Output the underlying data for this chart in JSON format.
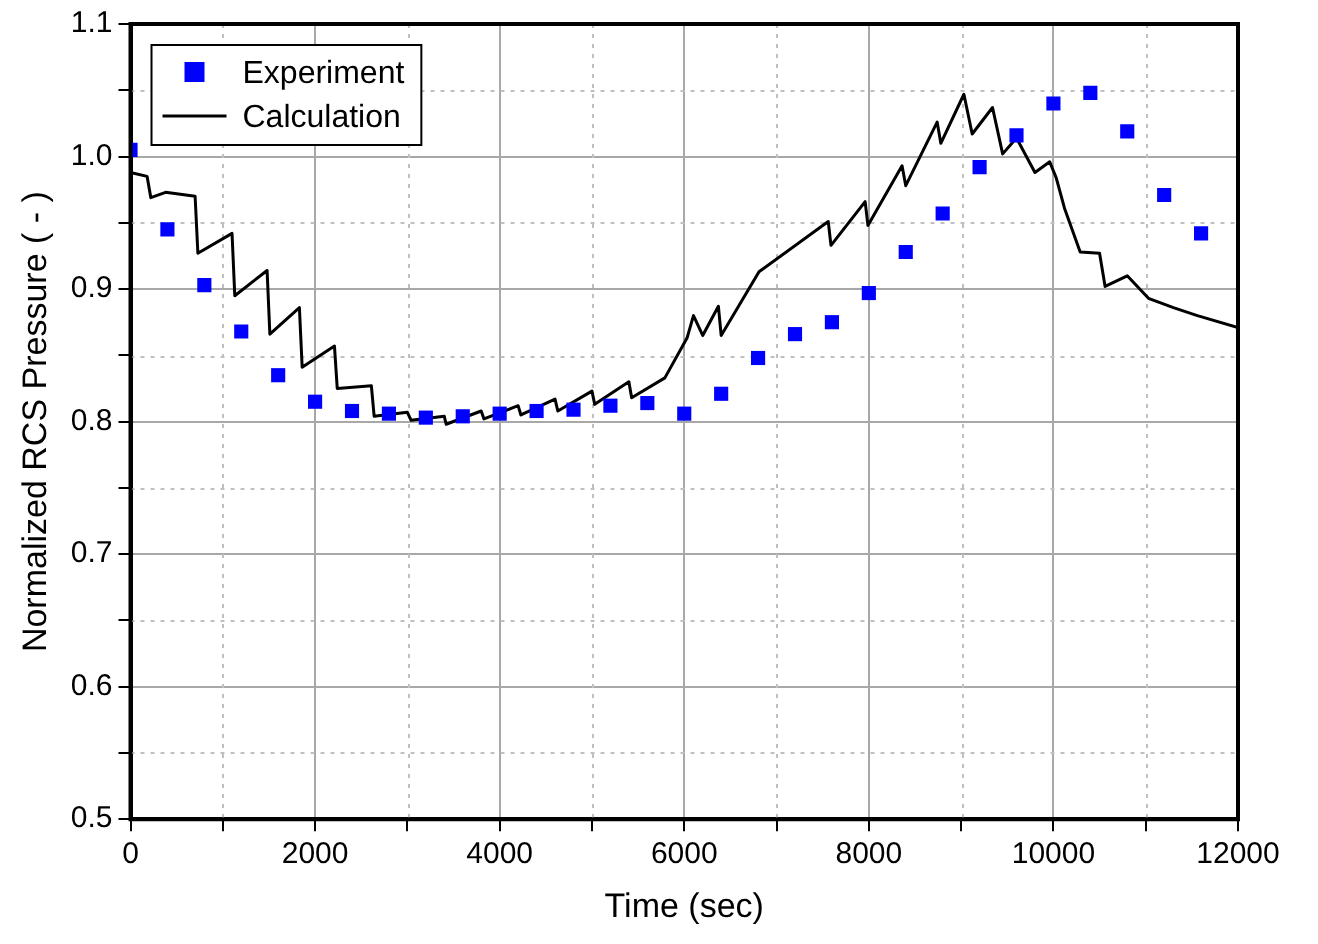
{
  "chart_data": {
    "type": "line",
    "xlabel": "Time (sec)",
    "ylabel": "Normalized RCS Pressure ( - )",
    "xlim": [
      0,
      12000
    ],
    "ylim": [
      0.5,
      1.1
    ],
    "xticks": [
      0,
      {
        "value": 1000,
        "label": null
      },
      2000,
      {
        "value": 3000,
        "label": null
      },
      4000,
      {
        "value": 5000,
        "label": null
      },
      6000,
      {
        "value": 7000,
        "label": null
      },
      8000,
      {
        "value": 9000,
        "label": null
      },
      10000,
      {
        "value": 11000,
        "label": null
      },
      12000
    ],
    "yticks": [
      0.5,
      {
        "value": 0.55,
        "label": null
      },
      0.6,
      {
        "value": 0.65,
        "label": null
      },
      0.7,
      {
        "value": 0.75,
        "label": null
      },
      0.8,
      {
        "value": 0.85,
        "label": null
      },
      0.9,
      {
        "value": 0.95,
        "label": null
      },
      {
        "value": 1,
        "label": "1.0"
      },
      {
        "value": 1.05,
        "label": null
      },
      1.1
    ],
    "grid": true,
    "legend": "top left",
    "series": [
      {
        "name": "Experiment",
        "type": "scatter",
        "marker": "square",
        "color": "#0000ff",
        "x": [
          0,
          400,
          800,
          1200,
          1600,
          2000,
          2400,
          2800,
          3200,
          3600,
          4000,
          4400,
          4800,
          5200,
          5600,
          6000,
          6400,
          6800,
          7200,
          7600,
          8000,
          8400,
          8800,
          9200,
          9600,
          10000,
          10400,
          10800,
          11200,
          11600
        ],
        "values": [
          1.005,
          0.945,
          0.903,
          0.868,
          0.835,
          0.815,
          0.808,
          0.806,
          0.803,
          0.804,
          0.806,
          0.808,
          0.809,
          0.812,
          0.814,
          0.806,
          0.821,
          0.848,
          0.866,
          0.875,
          0.897,
          0.928,
          0.957,
          0.992,
          1.016,
          1.04,
          1.048,
          1.019,
          0.971,
          0.942
        ]
      },
      {
        "name": "Calculation",
        "marker": "none",
        "line_style": "solid",
        "color": "#000000",
        "x": [
          0,
          180,
          220,
          380,
          700,
          730,
          1100,
          1130,
          1480,
          1510,
          1830,
          1860,
          2210,
          2240,
          2610,
          2640,
          3000,
          3040,
          3400,
          3420,
          3800,
          3830,
          4200,
          4230,
          4600,
          4630,
          5000,
          5030,
          5400,
          5430,
          5790,
          6030,
          6100,
          6200,
          6370,
          6400,
          6810,
          7560,
          7590,
          7960,
          7990,
          8360,
          8400,
          8740,
          8780,
          9030,
          9120,
          9340,
          9450,
          9600,
          9800,
          9960,
          10030,
          10120,
          10290,
          10500,
          10560,
          10800,
          11030,
          11300,
          11560,
          12000
        ],
        "values": [
          0.988,
          0.985,
          0.969,
          0.973,
          0.97,
          0.927,
          0.942,
          0.895,
          0.914,
          0.866,
          0.886,
          0.841,
          0.857,
          0.825,
          0.827,
          0.804,
          0.807,
          0.801,
          0.804,
          0.798,
          0.808,
          0.802,
          0.812,
          0.805,
          0.817,
          0.808,
          0.823,
          0.813,
          0.83,
          0.818,
          0.833,
          0.863,
          0.88,
          0.865,
          0.887,
          0.865,
          0.913,
          0.951,
          0.933,
          0.966,
          0.948,
          0.993,
          0.978,
          1.026,
          1.01,
          1.047,
          1.017,
          1.037,
          1.002,
          1.014,
          0.988,
          0.996,
          0.984,
          0.961,
          0.928,
          0.927,
          0.902,
          0.91,
          0.893,
          0.886,
          0.88,
          0.871
        ]
      }
    ]
  }
}
